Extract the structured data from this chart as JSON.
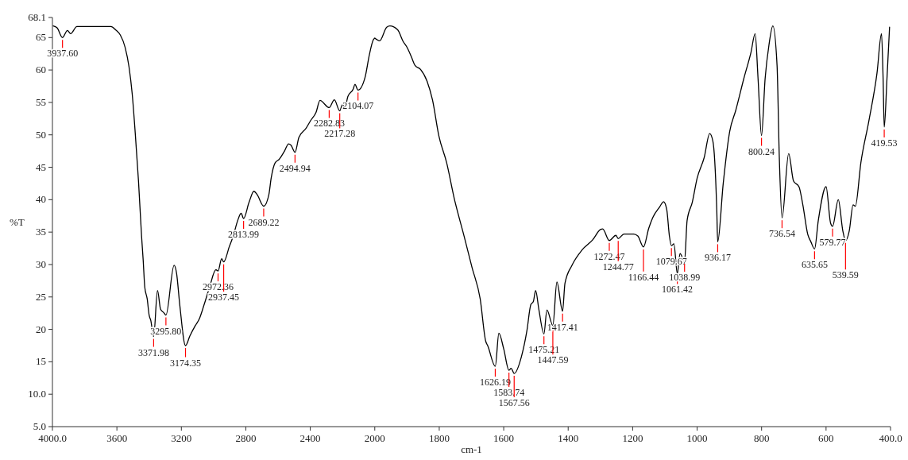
{
  "chart_data": [
    {
      "type": "line",
      "ylabel": "%T",
      "xlim": [
        4000,
        2000
      ],
      "ylim": [
        5,
        68.1
      ],
      "xticks": [
        {
          "value": 4000,
          "label": "4000.0"
        },
        3600,
        3200,
        2800,
        2400,
        2000
      ],
      "yticks": [
        {
          "value": 5,
          "label": "5.0"
        },
        {
          "value": 10,
          "label": "10.0"
        },
        15,
        20,
        25,
        30,
        35,
        40,
        45,
        50,
        55,
        60,
        65,
        68.1
      ],
      "grid": false,
      "marker": "none",
      "line_style": "solid",
      "series": [
        {
          "color": "#000000",
          "x": [
            3995,
            3971,
            3937.6,
            3907,
            3887,
            3848,
            3637,
            3608,
            3579,
            3549,
            3525,
            3505,
            3486,
            3466,
            3447,
            3437,
            3427,
            3412,
            3400,
            3390,
            3371.98,
            3348,
            3329,
            3310,
            3295.8,
            3245,
            3230,
            3210,
            3174.35,
            3147,
            3113,
            3089,
            3059,
            3025,
            2986,
            2972.36,
            2950,
            2937.45,
            2902,
            2878,
            2853,
            2829,
            2813.99,
            2780,
            2750,
            2730,
            2689.22,
            2657,
            2643,
            2618,
            2594,
            2560,
            2535,
            2520,
            2494.94,
            2471,
            2427,
            2398,
            2364,
            2340,
            2282.83,
            2251,
            2217.28,
            2200,
            2185,
            2167,
            2133,
            2123,
            2104.07,
            2060,
            2034,
            2010,
            2000
          ],
          "values": [
            66.8,
            66.5,
            65.0,
            66.1,
            65.6,
            66.7,
            66.7,
            66.2,
            65.4,
            63.5,
            60.5,
            56.3,
            50.2,
            42.9,
            34.4,
            30.7,
            26.5,
            24.7,
            22.2,
            21.4,
            18.9,
            26.0,
            23.1,
            22.6,
            22.2,
            29.9,
            28.7,
            23.8,
            17.5,
            19.0,
            20.6,
            21.6,
            23.8,
            26.5,
            29.2,
            29.0,
            30.9,
            30.4,
            32.8,
            34.4,
            36.6,
            37.9,
            37.1,
            39.6,
            41.3,
            40.8,
            39.0,
            40.8,
            43.3,
            45.7,
            46.2,
            47.5,
            48.6,
            48.4,
            47.3,
            49.6,
            51.0,
            52.2,
            53.5,
            55.3,
            54.2,
            55.4,
            53.7,
            54.7,
            54.2,
            55.9,
            57.1,
            57.8,
            56.9,
            58.9,
            62.3,
            64.6,
            64.9
          ]
        }
      ],
      "annotations": [
        {
          "text": "3937.60",
          "x": 3937.6,
          "y": 65.0
        },
        {
          "text": "3371.98",
          "x": 3371.98,
          "y": 18.9
        },
        {
          "text": "3295.80",
          "x": 3295.8,
          "y": 22.2
        },
        {
          "text": "3174.35",
          "x": 3174.35,
          "y": 17.5
        },
        {
          "text": "2972.36",
          "x": 2972.36,
          "y": 29.0
        },
        {
          "text": "2937.45",
          "x": 2937.45,
          "y": 30.4
        },
        {
          "text": "2813.99",
          "x": 2813.99,
          "y": 37.1
        },
        {
          "text": "2689.22",
          "x": 2689.22,
          "y": 39.0
        },
        {
          "text": "2494.94",
          "x": 2494.94,
          "y": 47.3
        },
        {
          "text": "2282.83",
          "x": 2282.83,
          "y": 54.2
        },
        {
          "text": "2217.28",
          "x": 2217.28,
          "y": 53.7
        },
        {
          "text": "2104.07",
          "x": 2104.07,
          "y": 56.9
        }
      ]
    },
    {
      "type": "line",
      "xlabel": "cm-1",
      "tick_labels": "x",
      "xlim": [
        2000,
        400
      ],
      "ylim": [
        5,
        68.1
      ],
      "xticks": [
        1800,
        1600,
        1400,
        1200,
        1000,
        800,
        600,
        {
          "value": 400,
          "label": "400.0"
        }
      ],
      "grid": false,
      "marker": "none",
      "line_style": "solid",
      "series": [
        {
          "color": "#000000",
          "x": [
            2000,
            1985,
            1963,
            1953,
            1929,
            1912,
            1900,
            1887,
            1875,
            1858,
            1838,
            1821,
            1801,
            1777,
            1753,
            1723,
            1698,
            1673,
            1656,
            1649,
            1626.19,
            1615,
            1600,
            1583.74,
            1577,
            1567.56,
            1545,
            1528,
            1516,
            1508,
            1501,
            1491,
            1475.21,
            1466,
            1447.59,
            1435,
            1417.41,
            1410,
            1388,
            1356,
            1324,
            1300,
            1293,
            1272.47,
            1252,
            1244.77,
            1227,
            1197,
            1184,
            1166.44,
            1150,
            1138,
            1116,
            1104,
            1094,
            1086,
            1079.67,
            1072,
            1061.42,
            1053,
            1038.99,
            1031,
            1015,
            1000,
            978,
            961,
            951,
            939,
            936.17,
            919,
            899,
            880,
            855,
            833,
            820,
            811,
            800.24,
            789,
            777,
            765,
            752,
            745,
            736.54,
            716,
            701,
            684,
            672,
            657,
            647,
            635.65,
            624,
            600,
            586,
            579.77,
            562,
            548,
            539.59,
            528,
            516,
            509,
            492,
            467,
            442,
            428,
            423,
            419.53,
            411,
            403
          ],
          "values": [
            64.9,
            64.5,
            66.6,
            66.8,
            66.2,
            64.4,
            63.5,
            62.1,
            60.7,
            60.1,
            58.3,
            55.4,
            49.8,
            45.7,
            40.1,
            34.4,
            29.5,
            24.7,
            18.2,
            17.4,
            14.3,
            19.4,
            17.0,
            13.7,
            14.0,
            13.2,
            15.8,
            19.8,
            23.8,
            24.3,
            26.0,
            23.1,
            19.3,
            23.0,
            20.6,
            27.3,
            22.8,
            27.1,
            29.9,
            32.3,
            33.8,
            35.4,
            35.5,
            33.7,
            34.5,
            34.0,
            34.7,
            34.7,
            34.4,
            32.7,
            35.6,
            37.2,
            38.9,
            39.7,
            38.4,
            34.4,
            32.9,
            33.2,
            28.6,
            31.7,
            30.5,
            36.8,
            39.6,
            43.3,
            46.5,
            50.2,
            49.0,
            38.4,
            33.5,
            42.5,
            50.5,
            53.8,
            58.7,
            62.7,
            65.6,
            58.7,
            49.9,
            58.7,
            63.9,
            66.8,
            60.7,
            46.5,
            37.2,
            47.1,
            42.9,
            42.0,
            39.2,
            34.7,
            33.5,
            32.4,
            36.8,
            42.0,
            36.4,
            35.9,
            40.0,
            35.2,
            33.7,
            35.2,
            39.2,
            39.0,
            45.7,
            52.2,
            59.5,
            65.6,
            58.7,
            51.2,
            58.7,
            66.6
          ]
        }
      ],
      "annotations": [
        {
          "text": "1626.19",
          "x": 1626.19,
          "y": 14.3
        },
        {
          "text": "1583.74",
          "x": 1583.74,
          "y": 13.7
        },
        {
          "text": "1567.56",
          "x": 1567.56,
          "y": 13.2
        },
        {
          "text": "1475.21",
          "x": 1475.21,
          "y": 19.3
        },
        {
          "text": "1447.59",
          "x": 1447.59,
          "y": 20.6
        },
        {
          "text": "1417.41",
          "x": 1417.41,
          "y": 22.8
        },
        {
          "text": "1272.47",
          "x": 1272.47,
          "y": 33.7
        },
        {
          "text": "1244.77",
          "x": 1244.77,
          "y": 34.0
        },
        {
          "text": "1166.44",
          "x": 1166.44,
          "y": 32.7
        },
        {
          "text": "1079.67",
          "x": 1079.67,
          "y": 32.9
        },
        {
          "text": "1061.42",
          "x": 1061.42,
          "y": 28.6
        },
        {
          "text": "1038.99",
          "x": 1038.99,
          "y": 30.5
        },
        {
          "text": "936.17",
          "x": 936.17,
          "y": 33.5
        },
        {
          "text": "800.24",
          "x": 800.24,
          "y": 49.9
        },
        {
          "text": "736.54",
          "x": 736.54,
          "y": 37.2
        },
        {
          "text": "635.65",
          "x": 635.65,
          "y": 32.4
        },
        {
          "text": "579.77",
          "x": 579.77,
          "y": 35.9
        },
        {
          "text": "539.59",
          "x": 539.59,
          "y": 33.7
        },
        {
          "text": "419.53",
          "x": 419.53,
          "y": 51.2
        }
      ]
    }
  ]
}
